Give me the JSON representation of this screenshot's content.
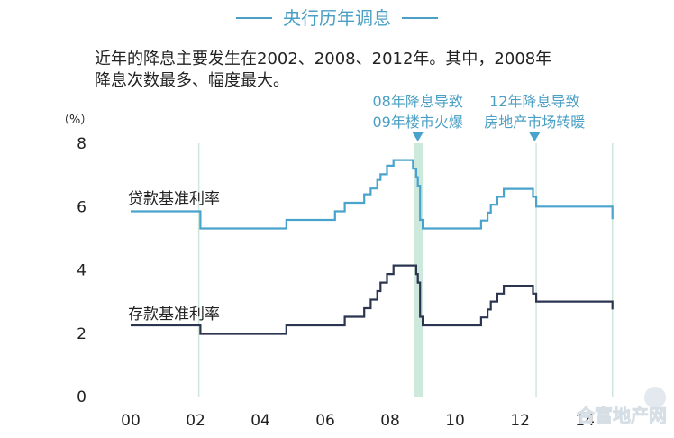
{
  "chart_data": {
    "type": "line",
    "title": "央行历年调息",
    "subtitle_lines": [
      "近年的降息主要发生在2002、2008、2012年。其中，2008年",
      "降息次数最多、幅度最大。"
    ],
    "ylabel": "（%）",
    "ylim": [
      0,
      8
    ],
    "yticks": [
      0,
      2,
      4,
      6,
      8
    ],
    "xlim": [
      2000,
      2014.9
    ],
    "xticks": [
      {
        "value": 2000,
        "label": "00"
      },
      {
        "value": 2002,
        "label": "02"
      },
      {
        "value": 2004,
        "label": "04"
      },
      {
        "value": 2006,
        "label": "06"
      },
      {
        "value": 2008,
        "label": "08"
      },
      {
        "value": 2010,
        "label": "10"
      },
      {
        "value": 2012,
        "label": "12"
      },
      {
        "value": 2014,
        "label": "14"
      }
    ],
    "vertical_gridlines": [
      2002.1,
      2008.75,
      2012.5,
      2014.85
    ],
    "highlight_band": [
      2008.75,
      2009.0
    ],
    "step": true,
    "series": [
      {
        "name": "贷款基准利率",
        "color": "#4aa3cc",
        "points": [
          [
            2000.0,
            5.85
          ],
          [
            2002.15,
            5.31
          ],
          [
            2004.8,
            5.58
          ],
          [
            2006.3,
            5.85
          ],
          [
            2006.6,
            6.12
          ],
          [
            2007.2,
            6.39
          ],
          [
            2007.4,
            6.57
          ],
          [
            2007.6,
            6.84
          ],
          [
            2007.7,
            7.02
          ],
          [
            2007.9,
            7.29
          ],
          [
            2008.1,
            7.47
          ],
          [
            2008.7,
            7.2
          ],
          [
            2008.8,
            6.93
          ],
          [
            2008.85,
            6.66
          ],
          [
            2008.92,
            5.58
          ],
          [
            2009.0,
            5.31
          ],
          [
            2010.8,
            5.56
          ],
          [
            2011.0,
            5.81
          ],
          [
            2011.1,
            6.06
          ],
          [
            2011.3,
            6.31
          ],
          [
            2011.5,
            6.56
          ],
          [
            2012.4,
            6.31
          ],
          [
            2012.5,
            6.0
          ],
          [
            2014.85,
            5.6
          ]
        ]
      },
      {
        "name": "存款基准利率",
        "color": "#2b3550",
        "points": [
          [
            2000.0,
            2.25
          ],
          [
            2002.15,
            1.98
          ],
          [
            2004.8,
            2.25
          ],
          [
            2006.6,
            2.52
          ],
          [
            2007.2,
            2.79
          ],
          [
            2007.4,
            3.06
          ],
          [
            2007.6,
            3.33
          ],
          [
            2007.7,
            3.6
          ],
          [
            2007.9,
            3.87
          ],
          [
            2008.1,
            4.14
          ],
          [
            2008.8,
            3.87
          ],
          [
            2008.85,
            3.6
          ],
          [
            2008.92,
            2.52
          ],
          [
            2009.0,
            2.25
          ],
          [
            2010.8,
            2.5
          ],
          [
            2011.0,
            2.75
          ],
          [
            2011.1,
            3.0
          ],
          [
            2011.3,
            3.25
          ],
          [
            2011.5,
            3.5
          ],
          [
            2012.4,
            3.25
          ],
          [
            2012.5,
            3.0
          ],
          [
            2014.85,
            2.75
          ]
        ]
      }
    ],
    "annotations": [
      {
        "x": 2008.85,
        "lines": [
          "08年降息导致",
          "09年楼市火爆"
        ]
      },
      {
        "x": 2012.45,
        "lines": [
          "12年降息导致",
          "房地产市场转暖"
        ]
      }
    ]
  },
  "watermark": "合富地产网"
}
